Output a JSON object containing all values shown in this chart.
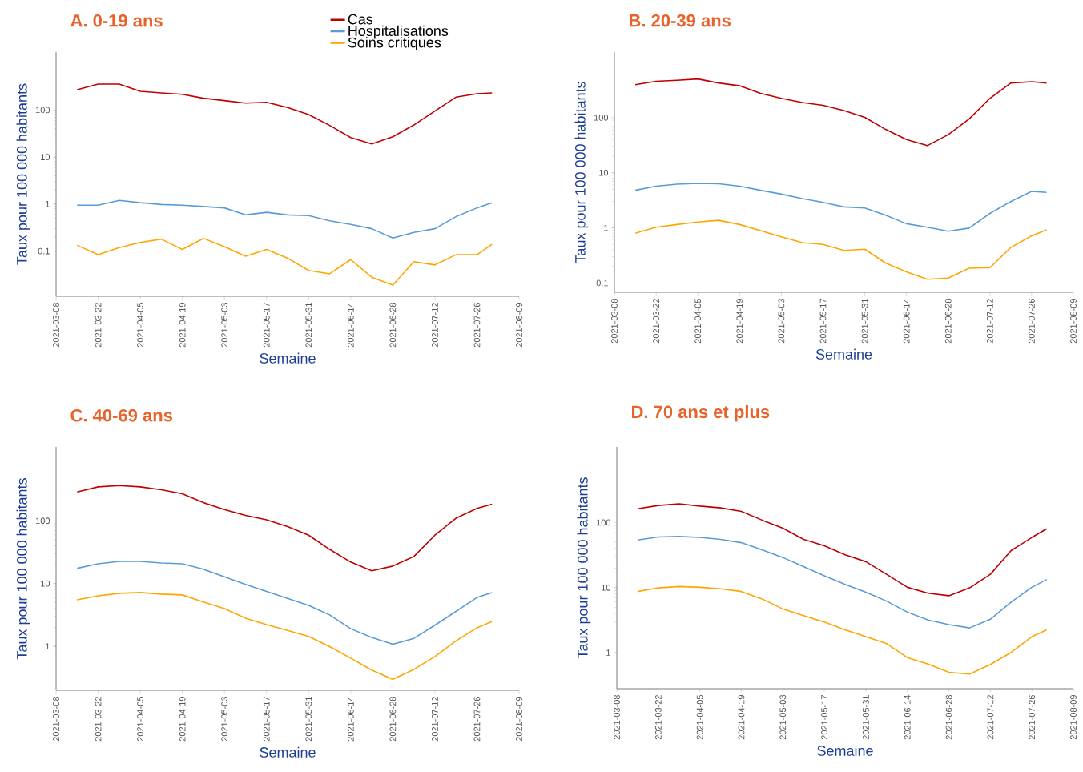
{
  "chart_data": [
    {
      "type": "line",
      "title": "A. 0-19 ans",
      "xlabel": "Semaine",
      "ylabel": "Taux pour 100 000 habitants",
      "log": true,
      "legend": "top",
      "x": [
        "2021-03-15",
        "2021-03-22",
        "2021-03-29",
        "2021-04-05",
        "2021-04-12",
        "2021-04-19",
        "2021-04-26",
        "2021-05-03",
        "2021-05-10",
        "2021-05-17",
        "2021-05-24",
        "2021-05-31",
        "2021-06-07",
        "2021-06-14",
        "2021-06-21",
        "2021-06-28",
        "2021-07-05",
        "2021-07-12",
        "2021-07-19",
        "2021-07-26",
        "2021-07-31"
      ],
      "xlim": [
        "2021-03-08",
        "2021-08-09"
      ],
      "xticks": [
        "2021-03-08",
        "2021-03-22",
        "2021-04-05",
        "2021-04-19",
        "2021-05-03",
        "2021-05-17",
        "2021-05-31",
        "2021-06-14",
        "2021-06-28",
        "2021-07-12",
        "2021-07-26",
        "2021-08-09"
      ],
      "ylim": [
        0.011,
        1700
      ],
      "yticks": [
        0.1,
        1,
        10,
        100
      ],
      "series": [
        {
          "name": "Cas",
          "color": "#c00000",
          "values": [
            270,
            355,
            355,
            250,
            230,
            215,
            178,
            158,
            140,
            145,
            113,
            80,
            47,
            26,
            19,
            27,
            48,
            95,
            187,
            222,
            230
          ]
        },
        {
          "name": "Hospitalisations",
          "color": "#5b9bd5",
          "values": [
            0.95,
            0.95,
            1.2,
            1.07,
            0.98,
            0.95,
            0.89,
            0.83,
            0.59,
            0.67,
            0.59,
            0.57,
            0.44,
            0.37,
            0.3,
            0.19,
            0.25,
            0.3,
            0.54,
            0.83,
            1.07
          ]
        },
        {
          "name": "Soins critiques",
          "color": "#ffa500",
          "values": [
            0.133,
            0.084,
            0.119,
            0.153,
            0.18,
            0.109,
            0.187,
            0.125,
            0.078,
            0.109,
            0.071,
            0.039,
            0.033,
            0.066,
            0.028,
            0.019,
            0.06,
            0.051,
            0.084,
            0.084,
            0.14
          ]
        }
      ]
    },
    {
      "type": "line",
      "title": "B. 20-39 ans",
      "xlabel": "Semaine",
      "ylabel": "Taux pour 100 000 habitants",
      "log": true,
      "x": [
        "2021-03-15",
        "2021-03-22",
        "2021-03-29",
        "2021-04-05",
        "2021-04-12",
        "2021-04-19",
        "2021-04-26",
        "2021-05-03",
        "2021-05-10",
        "2021-05-17",
        "2021-05-24",
        "2021-05-31",
        "2021-06-07",
        "2021-06-14",
        "2021-06-21",
        "2021-06-28",
        "2021-07-05",
        "2021-07-12",
        "2021-07-19",
        "2021-07-26",
        "2021-07-31"
      ],
      "xlim": [
        "2021-03-08",
        "2021-08-09"
      ],
      "xticks": [
        "2021-03-08",
        "2021-03-22",
        "2021-04-05",
        "2021-04-19",
        "2021-05-03",
        "2021-05-17",
        "2021-05-31",
        "2021-06-14",
        "2021-06-28",
        "2021-07-12",
        "2021-07-26",
        "2021-08-09"
      ],
      "ylim": [
        0.068,
        1540
      ],
      "yticks": [
        0.1,
        1,
        10,
        100
      ],
      "series": [
        {
          "color": "#c00000",
          "values": [
            394,
            454,
            474,
            500,
            423,
            377,
            275,
            223,
            187,
            167,
            134,
            101,
            61,
            40,
            31,
            49,
            94,
            223,
            423,
            448,
            423
          ]
        },
        {
          "color": "#5b9bd5",
          "values": [
            4.8,
            5.7,
            6.2,
            6.4,
            6.3,
            5.7,
            4.8,
            4.1,
            3.4,
            2.9,
            2.4,
            2.3,
            1.7,
            1.19,
            1.03,
            0.87,
            0.99,
            1.83,
            3.0,
            4.6,
            4.4
          ]
        },
        {
          "color": "#ffa500",
          "values": [
            0.8,
            1.03,
            1.15,
            1.28,
            1.37,
            1.15,
            0.89,
            0.69,
            0.54,
            0.5,
            0.39,
            0.41,
            0.23,
            0.16,
            0.117,
            0.123,
            0.185,
            0.19,
            0.44,
            0.72,
            0.92
          ]
        }
      ]
    },
    {
      "type": "line",
      "title": "C. 40-69 ans",
      "xlabel": "Semaine",
      "ylabel": "Taux pour 100 000 habitants",
      "log": true,
      "x": [
        "2021-03-15",
        "2021-03-22",
        "2021-03-29",
        "2021-04-05",
        "2021-04-12",
        "2021-04-19",
        "2021-04-26",
        "2021-05-03",
        "2021-05-10",
        "2021-05-17",
        "2021-05-24",
        "2021-05-31",
        "2021-06-07",
        "2021-06-14",
        "2021-06-21",
        "2021-06-28",
        "2021-07-05",
        "2021-07-12",
        "2021-07-19",
        "2021-07-26",
        "2021-07-31"
      ],
      "xlim": [
        "2021-03-08",
        "2021-08-09"
      ],
      "xticks": [
        "2021-03-08",
        "2021-03-22",
        "2021-04-05",
        "2021-04-19",
        "2021-05-03",
        "2021-05-17",
        "2021-05-31",
        "2021-06-14",
        "2021-06-28",
        "2021-07-12",
        "2021-07-26",
        "2021-08-09"
      ],
      "ylim": [
        0.2,
        1500
      ],
      "yticks": [
        1,
        10,
        100
      ],
      "series": [
        {
          "color": "#c00000",
          "values": [
            287,
            347,
            364,
            347,
            312,
            270,
            195,
            151,
            122,
            104,
            81,
            59,
            35,
            22,
            16,
            19,
            27,
            59,
            110,
            158,
            184
          ]
        },
        {
          "color": "#5b9bd5",
          "values": [
            17.5,
            20.7,
            22.6,
            22.6,
            21.3,
            20.7,
            16.9,
            12.8,
            9.7,
            7.5,
            5.8,
            4.5,
            3.17,
            1.91,
            1.39,
            1.08,
            1.34,
            2.17,
            3.6,
            6.0,
            7.2
          ]
        },
        {
          "color": "#ffa500",
          "values": [
            5.5,
            6.4,
            7.0,
            7.2,
            6.8,
            6.6,
            5.1,
            4.0,
            2.8,
            2.22,
            1.79,
            1.44,
            0.99,
            0.65,
            0.42,
            0.3,
            0.43,
            0.69,
            1.22,
            1.98,
            2.5
          ]
        }
      ]
    },
    {
      "type": "line",
      "title": "D. 70 ans et plus",
      "xlabel": "Semaine",
      "ylabel": "Taux pour 100 000 habitants",
      "log": true,
      "x": [
        "2021-03-15",
        "2021-03-22",
        "2021-03-29",
        "2021-04-05",
        "2021-04-12",
        "2021-04-19",
        "2021-04-26",
        "2021-05-03",
        "2021-05-10",
        "2021-05-17",
        "2021-05-24",
        "2021-05-31",
        "2021-06-07",
        "2021-06-14",
        "2021-06-21",
        "2021-06-28",
        "2021-07-05",
        "2021-07-12",
        "2021-07-19",
        "2021-07-26",
        "2021-07-31"
      ],
      "xlim": [
        "2021-03-08",
        "2021-08-09"
      ],
      "xticks": [
        "2021-03-08",
        "2021-03-22",
        "2021-04-05",
        "2021-04-19",
        "2021-05-03",
        "2021-05-17",
        "2021-05-31",
        "2021-06-14",
        "2021-06-28",
        "2021-07-12",
        "2021-07-26",
        "2021-08-09"
      ],
      "ylim": [
        0.28,
        1450
      ],
      "yticks": [
        1,
        10,
        100
      ],
      "series": [
        {
          "color": "#c00000",
          "values": [
            163,
            183,
            194,
            179,
            168,
            148,
            109,
            82,
            55,
            44,
            32,
            25,
            16,
            10.1,
            8.2,
            7.5,
            9.9,
            16,
            37,
            59,
            80
          ]
        },
        {
          "color": "#5b9bd5",
          "values": [
            54,
            60,
            61,
            59,
            55,
            49,
            38,
            29,
            21,
            15.2,
            11.2,
            8.5,
            6.2,
            4.2,
            3.18,
            2.7,
            2.4,
            3.26,
            6.0,
            10.1,
            13.3
          ]
        },
        {
          "color": "#ffa500",
          "values": [
            8.7,
            9.9,
            10.4,
            10.1,
            9.6,
            8.7,
            6.7,
            4.7,
            3.7,
            2.95,
            2.25,
            1.76,
            1.38,
            0.84,
            0.67,
            0.5,
            0.47,
            0.66,
            1.01,
            1.76,
            2.25
          ]
        }
      ]
    }
  ]
}
